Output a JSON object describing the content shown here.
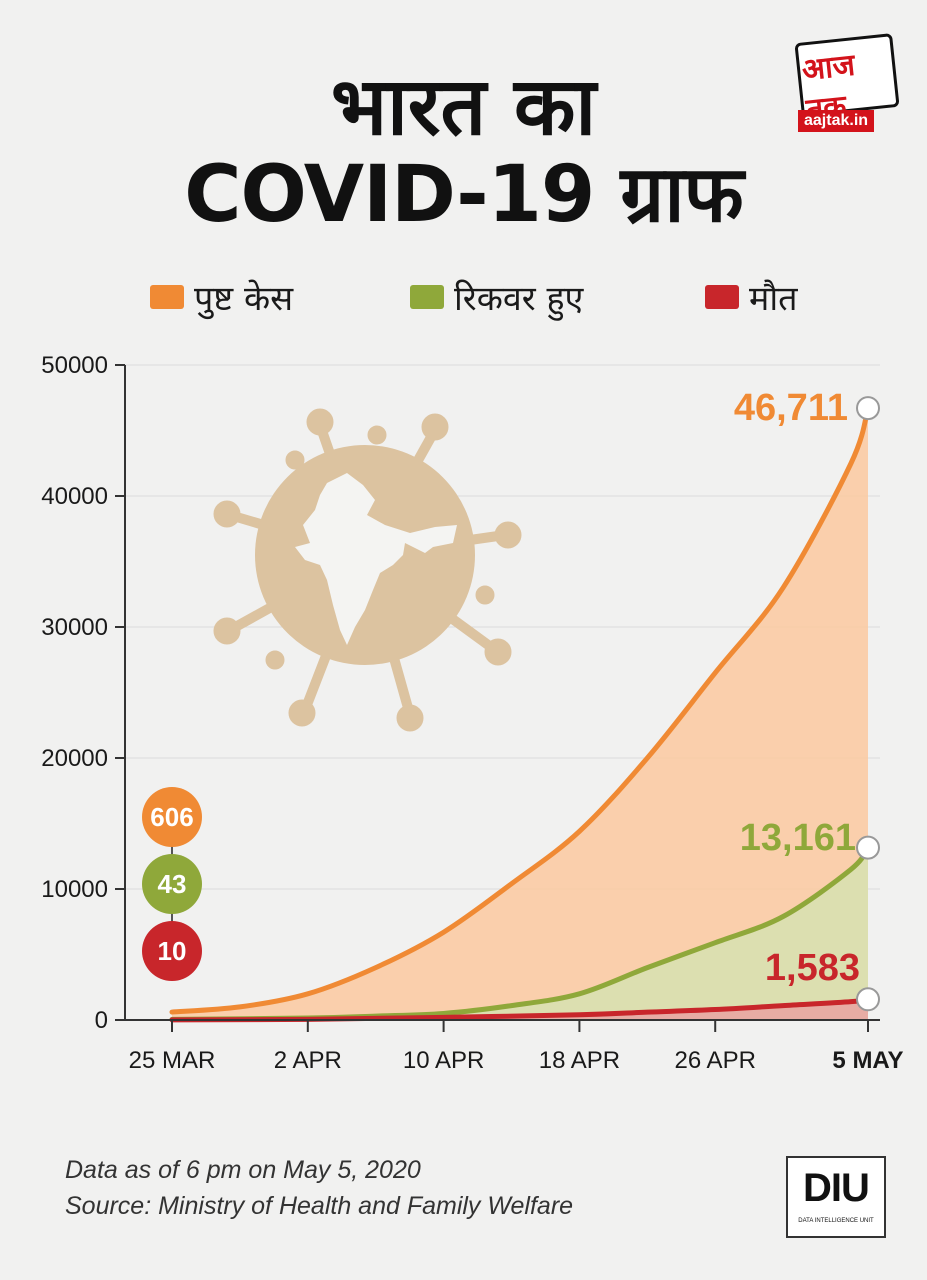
{
  "header": {
    "title_line1": "भारत का",
    "title_line2": "COVID-19 ग्राफ"
  },
  "logo": {
    "name": "आज तक",
    "url": "aajtak.in"
  },
  "legend": [
    {
      "label": "पुष्ट केस",
      "color": "#f08a34"
    },
    {
      "label": "रिकवर हुए",
      "color": "#8fa83a"
    },
    {
      "label": "मौत",
      "color": "#c8262b"
    }
  ],
  "start_values": {
    "confirmed": "606",
    "recovered": "43",
    "deaths": "10"
  },
  "end_values": {
    "confirmed": "46,711",
    "recovered": "13,161",
    "deaths": "1,583"
  },
  "chart_data": {
    "type": "area",
    "x_tick_labels": [
      "25 MAR",
      "2 APR",
      "10 APR",
      "18 APR",
      "26 APR",
      "5 MAY"
    ],
    "x_tick_days": [
      0,
      8,
      16,
      24,
      32,
      41
    ],
    "highlight_tick": "5 MAY",
    "y_tick_labels": [
      "0",
      "10000",
      "20000",
      "30000",
      "40000",
      "50000"
    ],
    "ylim": [
      0,
      50000
    ],
    "grid": true,
    "illustration": "india-virus-icon",
    "series": [
      {
        "name": "पुष्ट केस",
        "color": "#f08a34",
        "fill": "#fbc9a0",
        "x": [
          0,
          4,
          8,
          12,
          16,
          20,
          24,
          28,
          32,
          36,
          40,
          41
        ],
        "values": [
          606,
          1000,
          2000,
          4000,
          6700,
          10400,
          14400,
          20000,
          26500,
          33000,
          42500,
          46711
        ]
      },
      {
        "name": "रिकवर हुए",
        "color": "#8fa83a",
        "fill": "#d6e2b0",
        "x": [
          0,
          8,
          12,
          16,
          20,
          24,
          28,
          32,
          36,
          40,
          41
        ],
        "values": [
          43,
          150,
          300,
          500,
          1100,
          2000,
          4000,
          5900,
          7900,
          11500,
          13161
        ]
      },
      {
        "name": "मौत",
        "color": "#c8262b",
        "fill": "#e9a3a2",
        "x": [
          0,
          8,
          16,
          24,
          28,
          32,
          36,
          40,
          41
        ],
        "values": [
          10,
          50,
          200,
          400,
          600,
          800,
          1100,
          1400,
          1583
        ]
      }
    ]
  },
  "footer": {
    "note_line1": "Data as of 6 pm on May 5, 2020",
    "note_line2": "Source: Ministry of Health and Family Welfare",
    "badge": "DIU",
    "badge_subtitle": "DATA INTELLIGENCE UNIT"
  }
}
